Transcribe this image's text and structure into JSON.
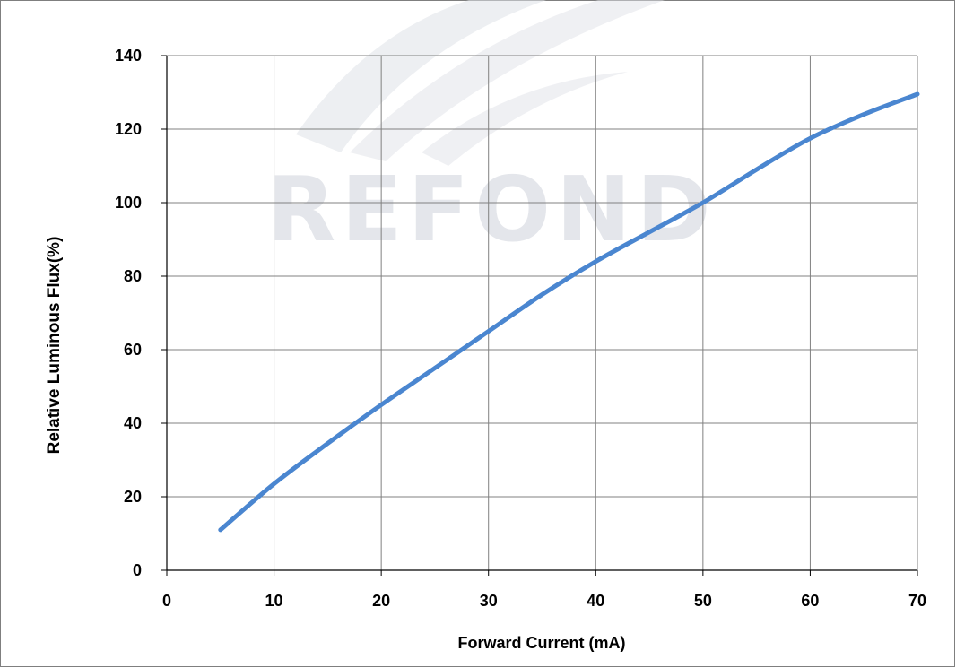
{
  "chart_data": {
    "type": "line",
    "xlabel": "Forward Current (mA)",
    "ylabel": "Relative Luminous Flux(%)",
    "xlim": [
      0,
      70
    ],
    "ylim": [
      0,
      140
    ],
    "x_ticks": [
      "0",
      "10",
      "20",
      "30",
      "40",
      "50",
      "60",
      "70"
    ],
    "y_ticks": [
      "0",
      "20",
      "40",
      "60",
      "80",
      "100",
      "120",
      "140"
    ],
    "grid": true,
    "series": [
      {
        "x": [
          5,
          10,
          15,
          20,
          25,
          30,
          35,
          40,
          45,
          50,
          55,
          60,
          65,
          70
        ],
        "values": [
          11,
          23.5,
          34.5,
          45,
          55,
          65,
          75,
          84,
          92,
          100,
          109,
          117.5,
          124,
          129.5
        ]
      }
    ],
    "colors": {
      "line": "#4a86d0",
      "grid": "#808080",
      "axis": "#000000"
    }
  },
  "watermark": "REFOND"
}
